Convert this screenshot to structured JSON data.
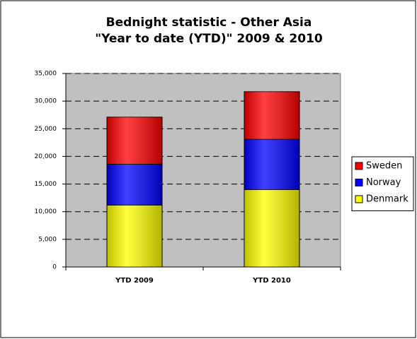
{
  "chart_data": {
    "type": "stacked_bar",
    "title": [
      "Bednight statistic - Other Asia",
      "\"Year to date (YTD)\" 2009 & 2010"
    ],
    "categories": [
      "YTD 2009",
      "YTD 2010"
    ],
    "series": [
      {
        "name": "Denmark",
        "color": "#ffff00",
        "values": [
          11200,
          14000
        ]
      },
      {
        "name": "Norway",
        "color": "#0000ff",
        "values": [
          7400,
          9100
        ]
      },
      {
        "name": "Sweden",
        "color": "#ff0000",
        "values": [
          8500,
          8600
        ]
      }
    ],
    "ylim": [
      0,
      35000
    ],
    "yticks": [
      0,
      {
        "value": 5000,
        "label": "5,000"
      },
      {
        "value": 10000,
        "label": "10,000"
      },
      {
        "value": 15000,
        "label": "15,000"
      },
      {
        "value": 20000,
        "label": "20,000"
      },
      {
        "value": 25000,
        "label": "25,000"
      },
      {
        "value": 30000,
        "label": "30,000"
      },
      {
        "value": 35000,
        "label": "35,000"
      }
    ],
    "grid": true,
    "plot_background": "#c0c0c0",
    "legend": "right"
  }
}
